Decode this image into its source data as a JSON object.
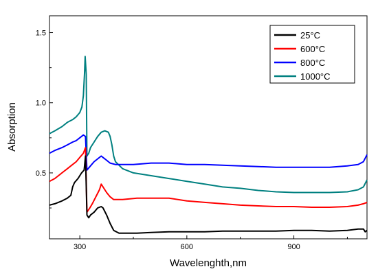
{
  "chart_data": {
    "type": "line",
    "title": "",
    "xlabel": "Wavelenghth,nm",
    "ylabel": "Absorption",
    "xlim": [
      215,
      1105
    ],
    "ylim": [
      0.03,
      1.62
    ],
    "x_ticks": [
      300,
      600,
      900
    ],
    "x_tick_labels": [
      "300",
      "600",
      "900"
    ],
    "y_ticks": [
      0.5,
      1.0,
      1.5
    ],
    "y_tick_labels": [
      "0.5",
      "1.0",
      "1.5"
    ],
    "grid": false,
    "legend_position": "top-right",
    "series": [
      {
        "name": "25°C",
        "color": "#000000",
        "points": [
          [
            215,
            0.27
          ],
          [
            230,
            0.28
          ],
          [
            250,
            0.3
          ],
          [
            265,
            0.32
          ],
          [
            275,
            0.34
          ],
          [
            280,
            0.4
          ],
          [
            285,
            0.43
          ],
          [
            295,
            0.46
          ],
          [
            305,
            0.5
          ],
          [
            312,
            0.52
          ],
          [
            316,
            0.62
          ],
          [
            320,
            0.2
          ],
          [
            325,
            0.18
          ],
          [
            330,
            0.2
          ],
          [
            340,
            0.22
          ],
          [
            350,
            0.25
          ],
          [
            360,
            0.26
          ],
          [
            365,
            0.25
          ],
          [
            375,
            0.2
          ],
          [
            385,
            0.14
          ],
          [
            395,
            0.09
          ],
          [
            410,
            0.07
          ],
          [
            430,
            0.07
          ],
          [
            460,
            0.07
          ],
          [
            500,
            0.075
          ],
          [
            550,
            0.08
          ],
          [
            600,
            0.08
          ],
          [
            650,
            0.08
          ],
          [
            700,
            0.085
          ],
          [
            750,
            0.085
          ],
          [
            800,
            0.085
          ],
          [
            850,
            0.085
          ],
          [
            900,
            0.09
          ],
          [
            950,
            0.09
          ],
          [
            1000,
            0.085
          ],
          [
            1050,
            0.09
          ],
          [
            1080,
            0.1
          ],
          [
            1095,
            0.1
          ],
          [
            1100,
            0.08
          ],
          [
            1105,
            0.09
          ]
        ]
      },
      {
        "name": "600°C",
        "color": "#ff0000",
        "points": [
          [
            215,
            0.44
          ],
          [
            230,
            0.46
          ],
          [
            250,
            0.5
          ],
          [
            265,
            0.53
          ],
          [
            280,
            0.56
          ],
          [
            290,
            0.58
          ],
          [
            300,
            0.61
          ],
          [
            310,
            0.64
          ],
          [
            316,
            0.68
          ],
          [
            320,
            0.22
          ],
          [
            328,
            0.25
          ],
          [
            335,
            0.28
          ],
          [
            345,
            0.33
          ],
          [
            355,
            0.38
          ],
          [
            360,
            0.42
          ],
          [
            365,
            0.4
          ],
          [
            375,
            0.36
          ],
          [
            385,
            0.33
          ],
          [
            395,
            0.31
          ],
          [
            420,
            0.31
          ],
          [
            460,
            0.32
          ],
          [
            500,
            0.32
          ],
          [
            550,
            0.32
          ],
          [
            600,
            0.3
          ],
          [
            650,
            0.29
          ],
          [
            700,
            0.28
          ],
          [
            750,
            0.27
          ],
          [
            800,
            0.265
          ],
          [
            850,
            0.26
          ],
          [
            900,
            0.26
          ],
          [
            950,
            0.255
          ],
          [
            1000,
            0.255
          ],
          [
            1050,
            0.26
          ],
          [
            1080,
            0.27
          ],
          [
            1095,
            0.28
          ],
          [
            1105,
            0.29
          ]
        ]
      },
      {
        "name": "800°C",
        "color": "#0000ff",
        "points": [
          [
            215,
            0.64
          ],
          [
            230,
            0.66
          ],
          [
            250,
            0.68
          ],
          [
            265,
            0.7
          ],
          [
            280,
            0.72
          ],
          [
            290,
            0.73
          ],
          [
            300,
            0.75
          ],
          [
            310,
            0.77
          ],
          [
            316,
            0.76
          ],
          [
            320,
            0.52
          ],
          [
            330,
            0.55
          ],
          [
            340,
            0.58
          ],
          [
            350,
            0.6
          ],
          [
            360,
            0.62
          ],
          [
            365,
            0.61
          ],
          [
            375,
            0.59
          ],
          [
            385,
            0.57
          ],
          [
            400,
            0.56
          ],
          [
            450,
            0.56
          ],
          [
            500,
            0.57
          ],
          [
            550,
            0.57
          ],
          [
            600,
            0.56
          ],
          [
            650,
            0.56
          ],
          [
            700,
            0.555
          ],
          [
            750,
            0.55
          ],
          [
            800,
            0.545
          ],
          [
            850,
            0.54
          ],
          [
            900,
            0.54
          ],
          [
            950,
            0.54
          ],
          [
            1000,
            0.54
          ],
          [
            1050,
            0.55
          ],
          [
            1080,
            0.56
          ],
          [
            1095,
            0.58
          ],
          [
            1105,
            0.63
          ]
        ]
      },
      {
        "name": "1000°C",
        "color": "#008080",
        "points": [
          [
            215,
            0.78
          ],
          [
            230,
            0.8
          ],
          [
            250,
            0.83
          ],
          [
            265,
            0.86
          ],
          [
            280,
            0.88
          ],
          [
            290,
            0.9
          ],
          [
            300,
            0.93
          ],
          [
            306,
            0.97
          ],
          [
            310,
            1.05
          ],
          [
            313,
            1.2
          ],
          [
            315,
            1.33
          ],
          [
            318,
            1.2
          ],
          [
            320,
            0.62
          ],
          [
            325,
            0.64
          ],
          [
            330,
            0.68
          ],
          [
            340,
            0.72
          ],
          [
            350,
            0.76
          ],
          [
            360,
            0.79
          ],
          [
            370,
            0.8
          ],
          [
            380,
            0.79
          ],
          [
            385,
            0.76
          ],
          [
            390,
            0.7
          ],
          [
            395,
            0.62
          ],
          [
            400,
            0.58
          ],
          [
            420,
            0.53
          ],
          [
            450,
            0.5
          ],
          [
            500,
            0.48
          ],
          [
            550,
            0.46
          ],
          [
            600,
            0.44
          ],
          [
            650,
            0.42
          ],
          [
            700,
            0.4
          ],
          [
            750,
            0.39
          ],
          [
            800,
            0.375
          ],
          [
            850,
            0.365
          ],
          [
            900,
            0.36
          ],
          [
            950,
            0.36
          ],
          [
            1000,
            0.36
          ],
          [
            1050,
            0.365
          ],
          [
            1080,
            0.38
          ],
          [
            1095,
            0.4
          ],
          [
            1105,
            0.45
          ]
        ]
      }
    ]
  }
}
